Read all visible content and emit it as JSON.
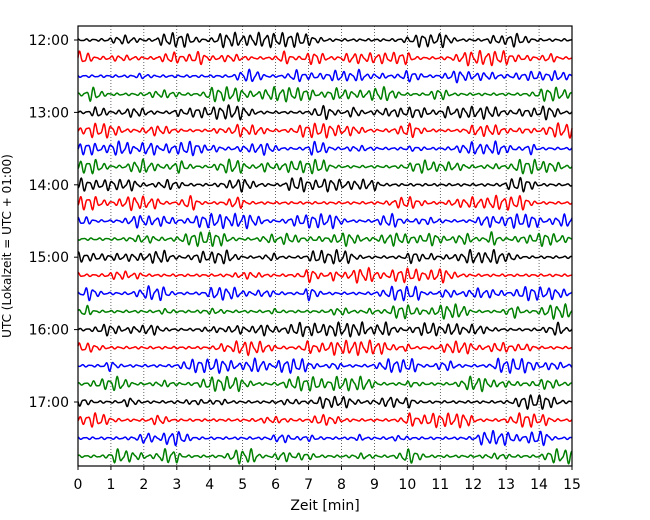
{
  "chart_data": {
    "type": "line",
    "title": "",
    "xlabel": "Zeit  [min]",
    "ylabel": "UTC (Lokalzeit = UTC + 01:00)",
    "xlim": [
      0,
      15
    ],
    "x_ticks": [
      "0",
      "1",
      "2",
      "3",
      "4",
      "5",
      "6",
      "7",
      "8",
      "9",
      "10",
      "11",
      "12",
      "13",
      "14",
      "15"
    ],
    "y_ticks": [
      "12:00",
      "13:00",
      "14:00",
      "15:00",
      "16:00",
      "17:00"
    ],
    "trace_start_times": [
      "12:00",
      "12:15",
      "12:30",
      "12:45",
      "13:00",
      "13:15",
      "13:30",
      "13:45",
      "14:00",
      "14:15",
      "14:30",
      "14:45",
      "15:00",
      "15:15",
      "15:30",
      "15:45",
      "16:00",
      "16:15",
      "16:30",
      "16:45",
      "17:00",
      "17:15",
      "17:30",
      "17:45"
    ],
    "trace_colors": [
      "#000000",
      "#ff0000",
      "#0000ff",
      "#008000"
    ],
    "grid": "vertical-dotted"
  }
}
